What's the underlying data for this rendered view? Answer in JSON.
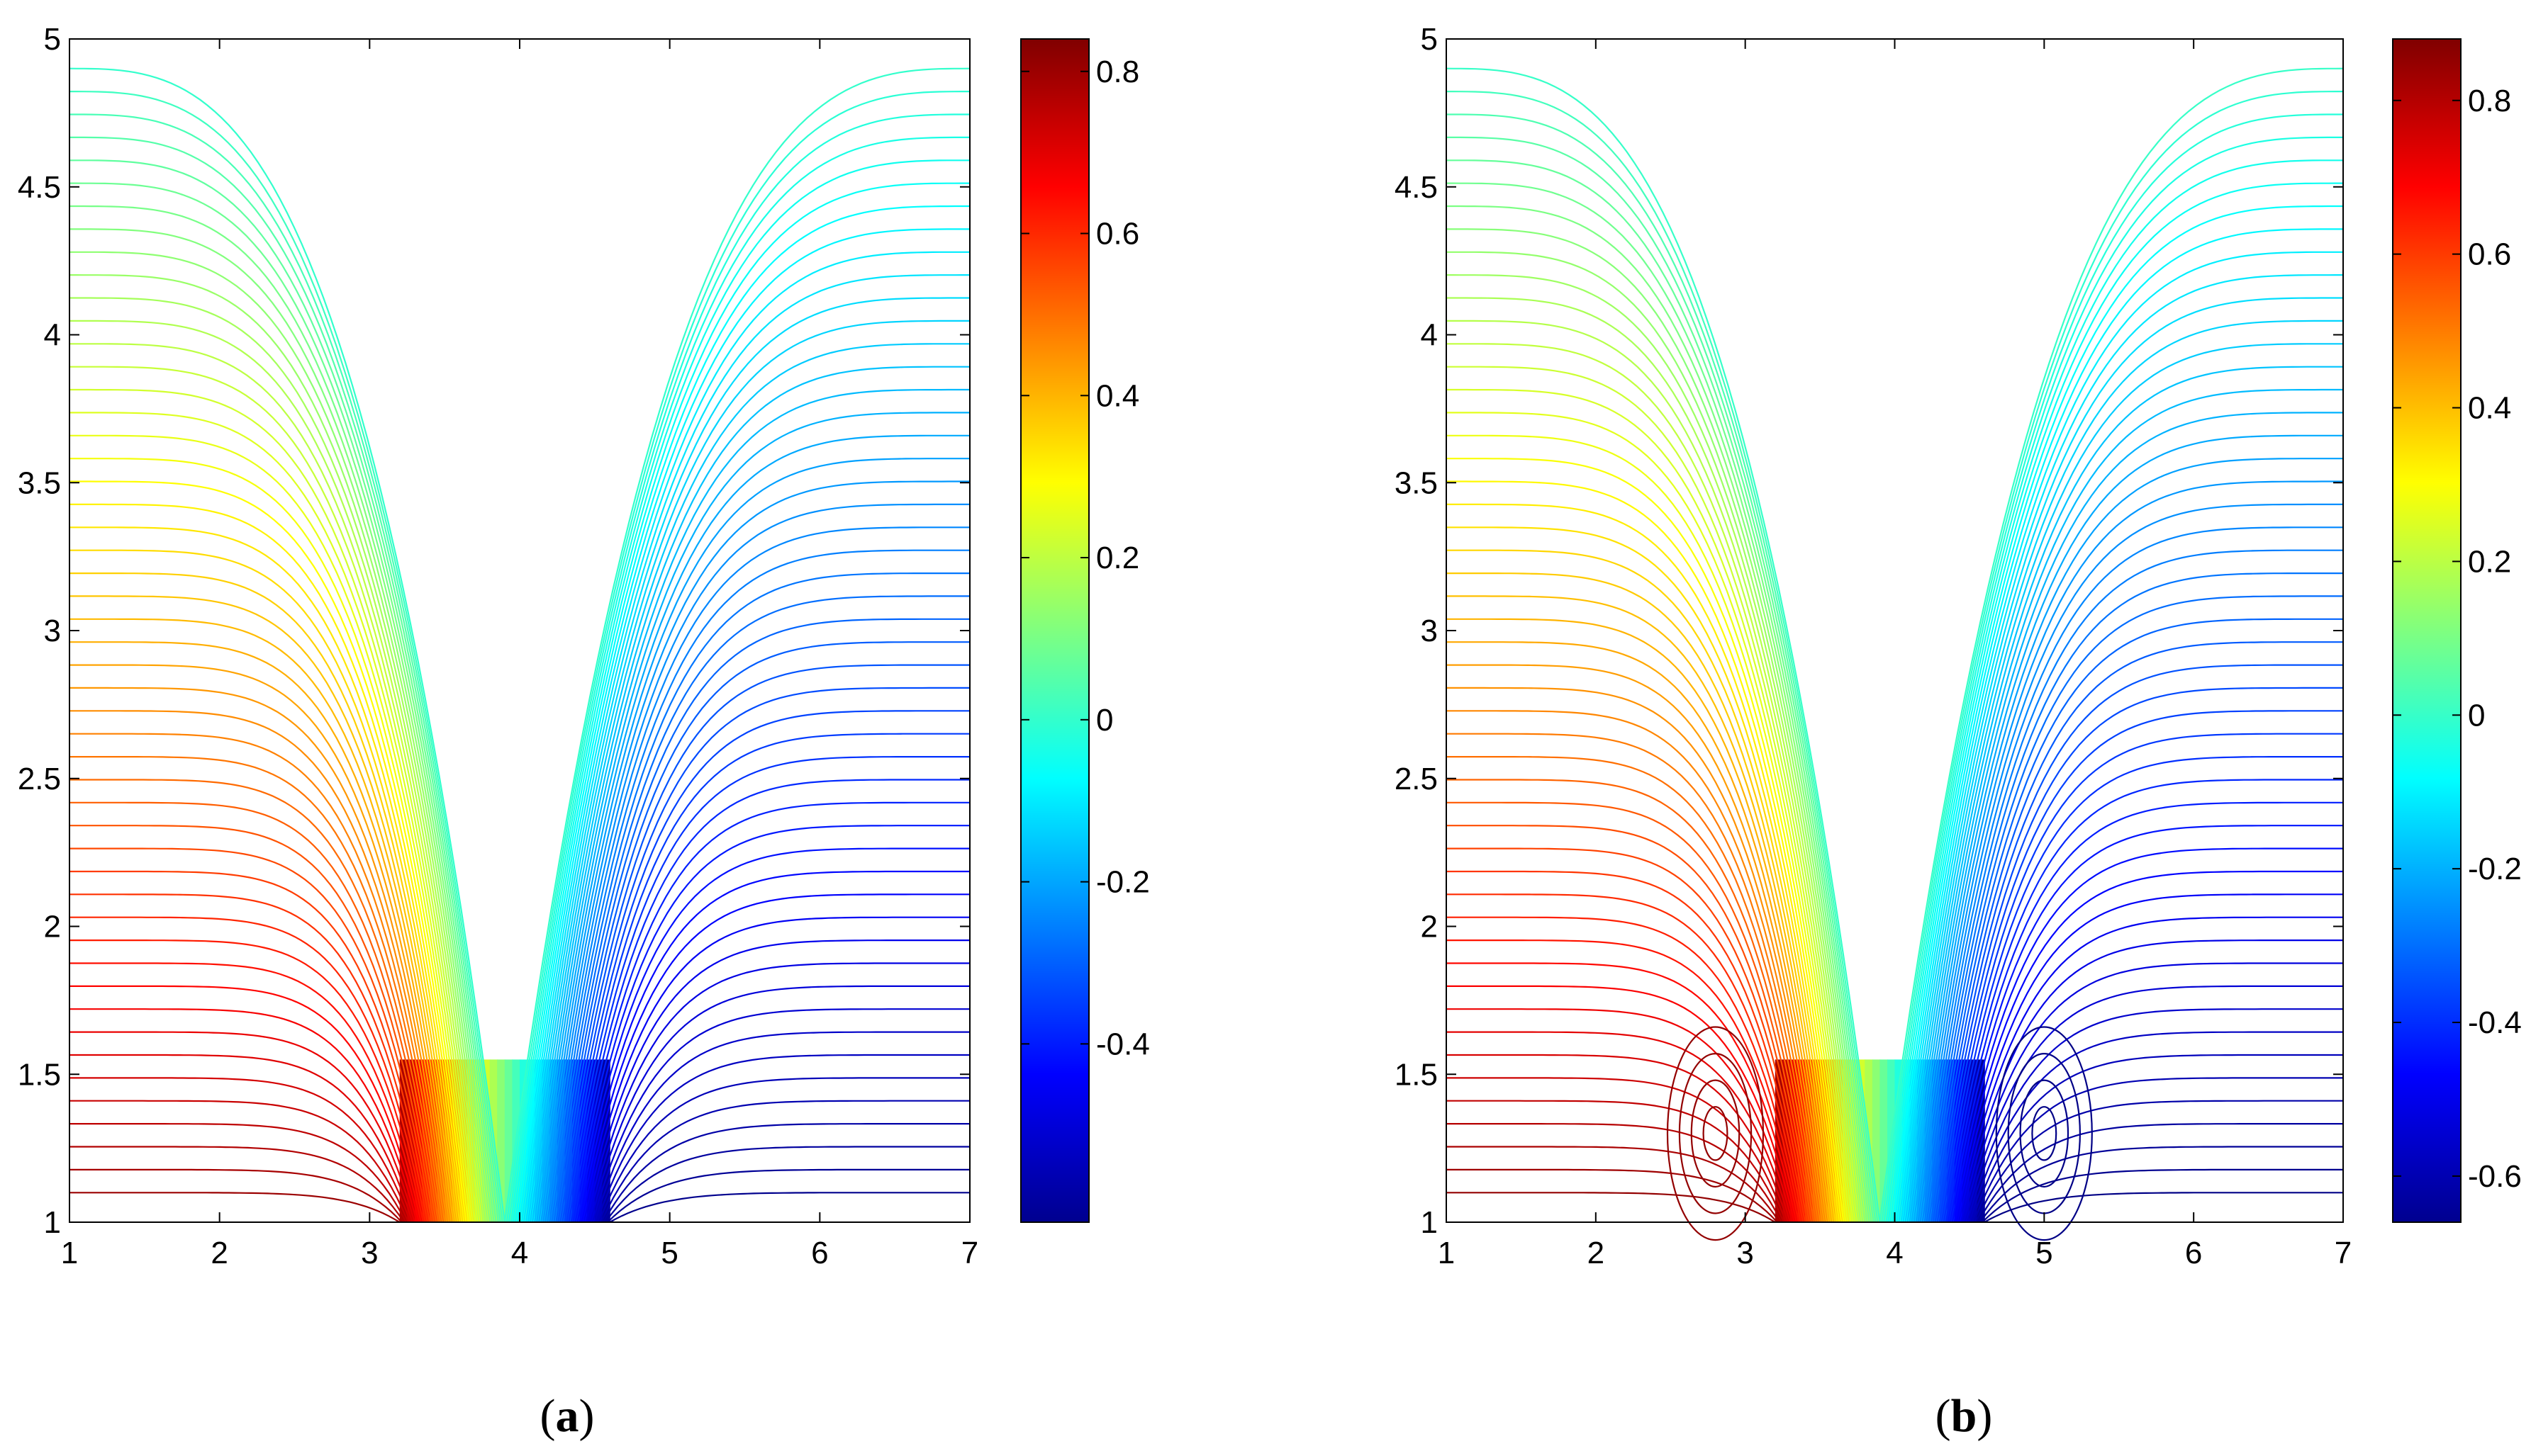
{
  "chart_data": [
    {
      "type": "contour",
      "panel_label": "a",
      "caption_open": "(",
      "caption_close": ")",
      "title": "",
      "xlabel": "",
      "ylabel": "",
      "xlim": [
        1,
        7
      ],
      "ylim": [
        1,
        5
      ],
      "x_ticks": [
        1,
        2,
        3,
        4,
        5,
        6,
        7
      ],
      "y_ticks": [
        1,
        1.5,
        2,
        2.5,
        3,
        3.5,
        4,
        4.5,
        5
      ],
      "colormap": "jet",
      "clim": [
        -0.62,
        0.84
      ],
      "colorbar_ticks": [
        -0.4,
        -0.2,
        0,
        0.2,
        0.4,
        0.6,
        0.8
      ],
      "jets": [
        {
          "x_start": 3.2,
          "x_end": 4.6,
          "top": 1.55,
          "value_left": 0.8,
          "value_right": -0.6
        }
      ],
      "lateral_vortices": false,
      "contour_levels": 50,
      "grid": false
    },
    {
      "type": "contour",
      "panel_label": "b",
      "caption_open": "(",
      "caption_close": ")",
      "title": "",
      "xlabel": "",
      "ylabel": "",
      "xlim": [
        1,
        7
      ],
      "ylim": [
        1,
        5
      ],
      "x_ticks": [
        1,
        2,
        3,
        4,
        5,
        6,
        7
      ],
      "y_ticks": [
        1,
        1.5,
        2,
        2.5,
        3,
        3.5,
        4,
        4.5,
        5
      ],
      "colormap": "jet",
      "clim": [
        -0.66,
        0.88
      ],
      "colorbar_ticks": [
        -0.6,
        -0.4,
        -0.2,
        0,
        0.2,
        0.4,
        0.6,
        0.8
      ],
      "jets": [
        {
          "x_start": 3.2,
          "x_end": 4.6,
          "top": 1.55,
          "value_left": 0.85,
          "value_right": -0.65
        }
      ],
      "lateral_vortices": true,
      "vortex_centers": [
        [
          2.8,
          1.3
        ],
        [
          5.0,
          1.3
        ]
      ],
      "contour_levels": 50,
      "grid": false
    }
  ]
}
